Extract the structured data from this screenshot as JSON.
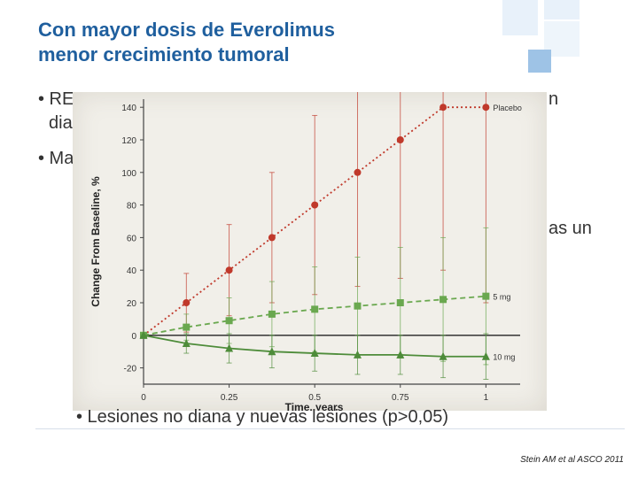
{
  "slide": {
    "title_line1": "Con mayor dosis de Everolimus",
    "title_line2": "menor crecimiento tumoral",
    "bullet1_visible": "• RE",
    "bullet1_tail": "n",
    "bullet1_line2": "dia",
    "bullet2_visible": "• Ma",
    "bullet3_tail": "as un",
    "bullet_bottom": "• Lesiones no diana y nuevas lesiones (p>0,05)",
    "footnote": "Stein AM et al ASCO 2011"
  },
  "colors": {
    "title": "#1f5f9e",
    "placebo": "#c0392b",
    "mg5": "#6aa84f",
    "mg10": "#4e8c3a",
    "deco_blue": "#9ec3e6"
  },
  "chart_data": {
    "type": "line",
    "xlabel": "Time, years",
    "ylabel": "Change From Baseline, %",
    "x_ticks": [
      "0",
      "0.25",
      "0.5",
      "0.75",
      "1"
    ],
    "y_ticks": [
      "-20",
      "0",
      "20",
      "40",
      "60",
      "80",
      "100",
      "120",
      "140"
    ],
    "xlim": [
      0,
      1.1
    ],
    "ylim": [
      -30,
      145
    ],
    "grid": false,
    "series": [
      {
        "name": "Placebo",
        "color": "#c0392b",
        "marker": "circle",
        "style": "dotted",
        "x": [
          0,
          0.125,
          0.25,
          0.375,
          0.5,
          0.625,
          0.75,
          0.875,
          1.0
        ],
        "y": [
          0,
          20,
          40,
          60,
          80,
          100,
          120,
          140,
          140
        ],
        "err": [
          0,
          18,
          28,
          40,
          55,
          70,
          85,
          100,
          120
        ]
      },
      {
        "name": "5 mg",
        "color": "#6aa84f",
        "marker": "square",
        "style": "dashed",
        "x": [
          0,
          0.125,
          0.25,
          0.375,
          0.5,
          0.625,
          0.75,
          0.875,
          1.0
        ],
        "y": [
          0,
          5,
          9,
          13,
          16,
          18,
          20,
          22,
          24
        ],
        "err": [
          0,
          8,
          14,
          20,
          26,
          30,
          34,
          38,
          42
        ]
      },
      {
        "name": "10 mg",
        "color": "#4e8c3a",
        "marker": "triangle",
        "style": "solid",
        "x": [
          0,
          0.125,
          0.25,
          0.375,
          0.5,
          0.625,
          0.75,
          0.875,
          1.0
        ],
        "y": [
          0,
          -5,
          -8,
          -10,
          -11,
          -12,
          -12,
          -13,
          -13
        ],
        "err": [
          0,
          6,
          9,
          10,
          11,
          12,
          12,
          13,
          14
        ]
      }
    ]
  }
}
